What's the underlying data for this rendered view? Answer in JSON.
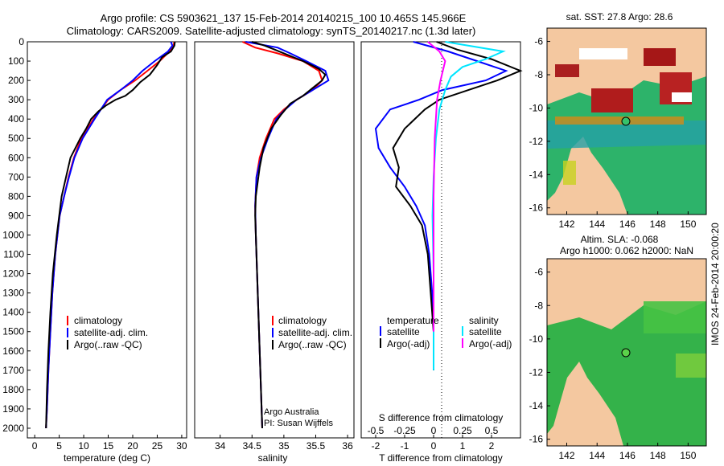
{
  "header": {
    "line1": "Argo profile: CS 5903621_137 15-Feb-2014 20140215_100 10.465S 145.966E",
    "line2": "Climatology: CARS2009. Satellite-adjusted climatology: synTS_20140217.nc (1.3d later)"
  },
  "colors": {
    "climatology": "#ff0000",
    "satellite": "#0000ff",
    "argo": "#000000",
    "sat_salinity": "#00e5ff",
    "argo_salinity": "#ff00ff"
  },
  "chart_data": [
    {
      "id": "temperature",
      "type": "line",
      "xlabel": "temperature (deg C)",
      "xlim": [
        -1.5,
        31
      ],
      "xticks": [
        0,
        5,
        10,
        15,
        20,
        25,
        30
      ],
      "ylim": [
        2050,
        0
      ],
      "yticks": [
        0,
        100,
        200,
        300,
        400,
        500,
        600,
        700,
        800,
        900,
        1000,
        1100,
        1200,
        1300,
        1400,
        1500,
        1600,
        1700,
        1800,
        1900,
        2000
      ],
      "legend": [
        "climatology",
        "satellite-adj. clim.",
        "Argo(..raw -QC)"
      ],
      "series": [
        {
          "name": "climatology",
          "color": "#ff0000",
          "x": [
            28.5,
            28.3,
            27.5,
            25.5,
            23,
            20.5,
            17.5,
            15,
            12,
            9.5,
            8,
            6.9,
            6,
            5.1,
            4.2,
            3.6,
            3.2,
            2.8,
            2.5,
            2.3
          ],
          "y": [
            0,
            20,
            50,
            100,
            150,
            200,
            250,
            300,
            400,
            500,
            600,
            700,
            800,
            900,
            1100,
            1300,
            1500,
            1700,
            1900,
            2000
          ]
        },
        {
          "name": "satellite-adj. clim.",
          "color": "#0000ff",
          "x": [
            27.8,
            28.1,
            27.2,
            24.5,
            22,
            20,
            17.5,
            14.8,
            12.2,
            9.8,
            8.1,
            7,
            6,
            5.1,
            4.2,
            3.6,
            3.2,
            2.8,
            2.5,
            2.3
          ],
          "y": [
            0,
            20,
            50,
            100,
            150,
            200,
            250,
            300,
            400,
            500,
            600,
            700,
            800,
            900,
            1100,
            1300,
            1500,
            1700,
            1900,
            2000
          ]
        },
        {
          "name": "Argo(..raw -QC)",
          "color": "#000000",
          "x": [
            28.6,
            28.5,
            27.8,
            26,
            25,
            23.5,
            21.5,
            20,
            18.5,
            16.5,
            14.5,
            13,
            11.5,
            10.5,
            9.3,
            8.3,
            7.3,
            6.4,
            5.5,
            4.5,
            3.7,
            3.2,
            2.8,
            2.5,
            2.3
          ],
          "y": [
            0,
            20,
            50,
            80,
            120,
            170,
            210,
            250,
            280,
            300,
            330,
            360,
            400,
            450,
            500,
            550,
            600,
            700,
            800,
            1000,
            1200,
            1400,
            1600,
            1800,
            2000
          ]
        }
      ]
    },
    {
      "id": "salinity",
      "type": "line",
      "xlabel": "salinity",
      "xlim": [
        33.6,
        36.1
      ],
      "xticks": [
        34,
        34.5,
        35,
        35.5,
        36
      ],
      "xticklabels": [
        "34",
        "34.5",
        "35",
        "35.5",
        "36"
      ],
      "ylim": [
        2050,
        0
      ],
      "legend": [
        "climatology",
        "satellite-adj. clim.",
        "Argo(..raw -QC)"
      ],
      "annotations": [
        "Argo Australia",
        "PI: Susan Wijffels"
      ],
      "series": [
        {
          "name": "climatology",
          "color": "#ff0000",
          "x": [
            34.35,
            34.55,
            34.9,
            35.3,
            35.55,
            35.6,
            35.45,
            35.2,
            35,
            34.85,
            34.72,
            34.62,
            34.57,
            34.55,
            34.56,
            34.58,
            34.6,
            34.62,
            34.64,
            34.66
          ],
          "y": [
            0,
            30,
            60,
            100,
            150,
            200,
            250,
            300,
            350,
            400,
            500,
            600,
            700,
            850,
            1000,
            1200,
            1400,
            1600,
            1800,
            2000
          ]
        },
        {
          "name": "satellite-adj. clim.",
          "color": "#0000ff",
          "x": [
            34.4,
            34.9,
            35.1,
            35.35,
            35.65,
            35.7,
            35.45,
            35.2,
            35.02,
            34.88,
            34.75,
            34.64,
            34.57,
            34.55,
            34.56,
            34.58,
            34.6,
            34.62,
            34.64,
            34.66
          ],
          "y": [
            0,
            30,
            60,
            100,
            150,
            200,
            250,
            300,
            350,
            400,
            500,
            600,
            700,
            850,
            1000,
            1200,
            1400,
            1600,
            1800,
            2000
          ]
        },
        {
          "name": "Argo(..raw -QC)",
          "color": "#000000",
          "x": [
            34.5,
            34.7,
            34.85,
            35.0,
            35.3,
            35.55,
            35.65,
            35.6,
            35.45,
            35.3,
            35.1,
            34.95,
            34.8,
            34.68,
            34.62,
            34.56,
            34.55,
            34.56,
            34.58,
            34.6,
            34.62,
            34.64,
            34.66
          ],
          "y": [
            0,
            20,
            40,
            60,
            100,
            140,
            170,
            200,
            240,
            280,
            320,
            380,
            450,
            550,
            650,
            800,
            900,
            1000,
            1200,
            1400,
            1600,
            1800,
            2000
          ]
        }
      ]
    },
    {
      "id": "differences",
      "type": "line",
      "xlabel": "T difference from climatology",
      "xlim": [
        -2.5,
        3.0
      ],
      "xticks": [
        -2,
        -1,
        0,
        1,
        2
      ],
      "xlabel2": "S difference from climatology",
      "x2lim": [
        -0.625,
        0.75
      ],
      "x2ticks": [
        -0.5,
        -0.25,
        0,
        0.25,
        0.5
      ],
      "x2ticklabels": [
        "-0.5",
        "-0.25",
        "0",
        "0.25",
        "0.5"
      ],
      "ylim": [
        2050,
        0
      ],
      "legend_titles": [
        "temperature",
        "salinity"
      ],
      "legend_left": [
        "satellite",
        "Argo(-adj)"
      ],
      "legend_right": [
        "satellite",
        "Argo(-adj)"
      ],
      "series": [
        {
          "name": "T satellite",
          "color": "#0000ff",
          "x": [
            -0.7,
            0.5,
            1.5,
            2.5,
            1.8,
            0.3,
            -0.5,
            -1.5,
            -2.0,
            -1.9,
            -1.5,
            -1.0,
            -0.6,
            -0.3,
            -0.15,
            -0.05,
            0,
            0
          ],
          "y": [
            0,
            50,
            100,
            150,
            200,
            250,
            300,
            350,
            450,
            550,
            650,
            750,
            850,
            950,
            1100,
            1300,
            1500,
            1700
          ]
        },
        {
          "name": "T Argo(-adj)",
          "color": "#000000",
          "x": [
            0.1,
            0.8,
            2.0,
            3.0,
            2.2,
            1.2,
            0.2,
            -0.3,
            -1.0,
            -1.4,
            -1.2,
            -1.3,
            -0.8,
            -0.4,
            -0.2,
            -0.1,
            0,
            0
          ],
          "y": [
            0,
            40,
            90,
            150,
            200,
            250,
            300,
            350,
            450,
            550,
            650,
            750,
            850,
            950,
            1100,
            1300,
            1500,
            1700
          ]
        },
        {
          "name": "S satellite",
          "color": "#00e5ff",
          "x": [
            0.1,
            0.6,
            0.45,
            0.25,
            0.15,
            0.1,
            0.05,
            0.02,
            0,
            -0.01,
            0,
            0
          ],
          "y": [
            0,
            50,
            90,
            130,
            180,
            250,
            350,
            500,
            700,
            900,
            1200,
            1700
          ]
        },
        {
          "name": "S Argo(-adj)",
          "color": "#ff00ff",
          "x": [
            -0.05,
            0.05,
            0.1,
            0.08,
            0.06,
            0.03,
            0.01,
            0,
            0
          ],
          "y": [
            0,
            50,
            100,
            150,
            200,
            300,
            500,
            800,
            1500
          ]
        }
      ]
    }
  ],
  "maps": {
    "sst": {
      "title": "sat. SST: 27.8 Argo: 28.6",
      "xticks": [
        "142",
        "144",
        "146",
        "148",
        "150"
      ],
      "yticks": [
        "-6",
        "-8",
        "-10",
        "-12",
        "-14",
        "-16"
      ]
    },
    "sla": {
      "title_line1": "Altim. SLA: -0.068",
      "title_line2": "Argo h1000: 0.062 h2000: NaN",
      "xticks": [
        "142",
        "144",
        "146",
        "148",
        "150"
      ],
      "yticks": [
        "-6",
        "-8",
        "-10",
        "-12",
        "-14",
        "-16"
      ]
    }
  },
  "footer": "IMOS 24-Feb-2014 20:00:20"
}
